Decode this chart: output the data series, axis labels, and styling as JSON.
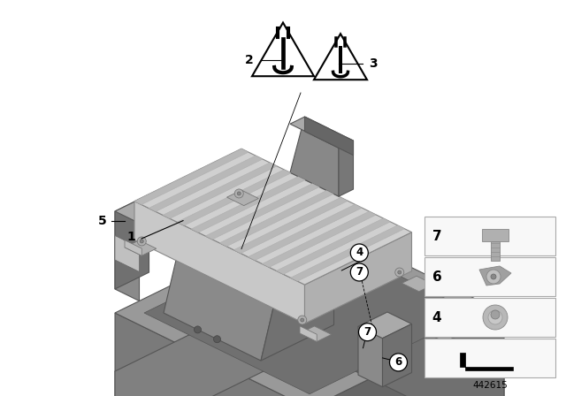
{
  "bg_color": "#ffffff",
  "diagram_id": "442615",
  "gray_tray_face": "#888888",
  "gray_tray_side": "#6e6e6e",
  "gray_tray_top": "#a0a0a0",
  "gray_mod_face": "#c8c8c8",
  "gray_mod_right": "#b0b0b0",
  "gray_mod_top_light": "#d8d8d8",
  "gray_mod_top_dark": "#b8b8b8",
  "gray_bracket": "#808080",
  "gray_bracket_dark": "#606060",
  "edge_color": "#555555",
  "edge_light": "#888888"
}
